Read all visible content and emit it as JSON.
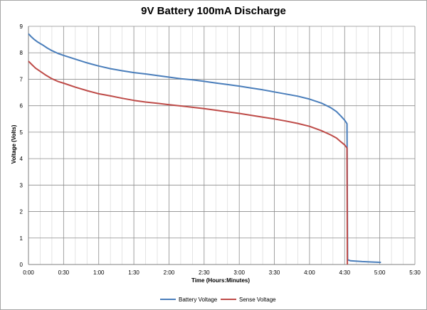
{
  "chart_data": {
    "type": "line",
    "title": "9V Battery 100mA Discharge",
    "xlabel": "Time (Hours:Minutes)",
    "ylabel": "Voltage (Volts)",
    "x_unit": "minutes",
    "xlim": [
      0,
      330
    ],
    "ylim": [
      0,
      9
    ],
    "x_ticks": [
      {
        "value": 0,
        "label": "0:00"
      },
      {
        "value": 30,
        "label": "0:30"
      },
      {
        "value": 60,
        "label": "1:00"
      },
      {
        "value": 90,
        "label": "1:30"
      },
      {
        "value": 120,
        "label": "2:00"
      },
      {
        "value": 150,
        "label": "2:30"
      },
      {
        "value": 180,
        "label": "3:00"
      },
      {
        "value": 210,
        "label": "3:30"
      },
      {
        "value": 240,
        "label": "4:00"
      },
      {
        "value": 270,
        "label": "4:30"
      },
      {
        "value": 300,
        "label": "5:00"
      },
      {
        "value": 330,
        "label": "5:30"
      }
    ],
    "y_ticks": [
      0,
      1,
      2,
      3,
      4,
      5,
      6,
      7,
      8,
      9
    ],
    "x_minor_grid_step": 10,
    "grid": true,
    "legend_position": "bottom",
    "series": [
      {
        "name": "Battery Voltage",
        "color": "#4a7ebb",
        "points": [
          [
            0,
            8.72
          ],
          [
            2,
            8.62
          ],
          [
            5,
            8.5
          ],
          [
            8,
            8.4
          ],
          [
            12,
            8.3
          ],
          [
            16,
            8.18
          ],
          [
            20,
            8.08
          ],
          [
            25,
            7.98
          ],
          [
            30,
            7.9
          ],
          [
            40,
            7.76
          ],
          [
            50,
            7.62
          ],
          [
            60,
            7.5
          ],
          [
            70,
            7.4
          ],
          [
            80,
            7.32
          ],
          [
            90,
            7.25
          ],
          [
            100,
            7.2
          ],
          [
            110,
            7.14
          ],
          [
            120,
            7.08
          ],
          [
            130,
            7.02
          ],
          [
            140,
            6.98
          ],
          [
            150,
            6.92
          ],
          [
            160,
            6.86
          ],
          [
            170,
            6.8
          ],
          [
            180,
            6.74
          ],
          [
            190,
            6.67
          ],
          [
            200,
            6.6
          ],
          [
            210,
            6.52
          ],
          [
            220,
            6.44
          ],
          [
            230,
            6.36
          ],
          [
            240,
            6.25
          ],
          [
            250,
            6.1
          ],
          [
            258,
            5.93
          ],
          [
            263,
            5.78
          ],
          [
            267,
            5.6
          ],
          [
            270,
            5.45
          ],
          [
            272,
            5.32
          ],
          [
            272.5,
            0.18
          ],
          [
            275,
            0.14
          ],
          [
            285,
            0.11
          ],
          [
            295,
            0.09
          ],
          [
            301,
            0.08
          ]
        ]
      },
      {
        "name": "Sense Voltage",
        "color": "#be4b48",
        "points": [
          [
            0,
            7.68
          ],
          [
            3,
            7.55
          ],
          [
            6,
            7.42
          ],
          [
            10,
            7.3
          ],
          [
            15,
            7.15
          ],
          [
            20,
            7.02
          ],
          [
            25,
            6.92
          ],
          [
            30,
            6.85
          ],
          [
            40,
            6.7
          ],
          [
            50,
            6.57
          ],
          [
            60,
            6.45
          ],
          [
            70,
            6.37
          ],
          [
            80,
            6.28
          ],
          [
            90,
            6.2
          ],
          [
            100,
            6.14
          ],
          [
            110,
            6.09
          ],
          [
            120,
            6.04
          ],
          [
            130,
            5.99
          ],
          [
            140,
            5.94
          ],
          [
            150,
            5.89
          ],
          [
            160,
            5.83
          ],
          [
            170,
            5.77
          ],
          [
            180,
            5.71
          ],
          [
            190,
            5.64
          ],
          [
            200,
            5.57
          ],
          [
            210,
            5.5
          ],
          [
            220,
            5.42
          ],
          [
            230,
            5.33
          ],
          [
            240,
            5.22
          ],
          [
            250,
            5.06
          ],
          [
            258,
            4.9
          ],
          [
            263,
            4.78
          ],
          [
            267,
            4.63
          ],
          [
            270,
            4.52
          ],
          [
            272,
            4.4
          ],
          [
            272.3,
            0
          ]
        ]
      }
    ]
  }
}
